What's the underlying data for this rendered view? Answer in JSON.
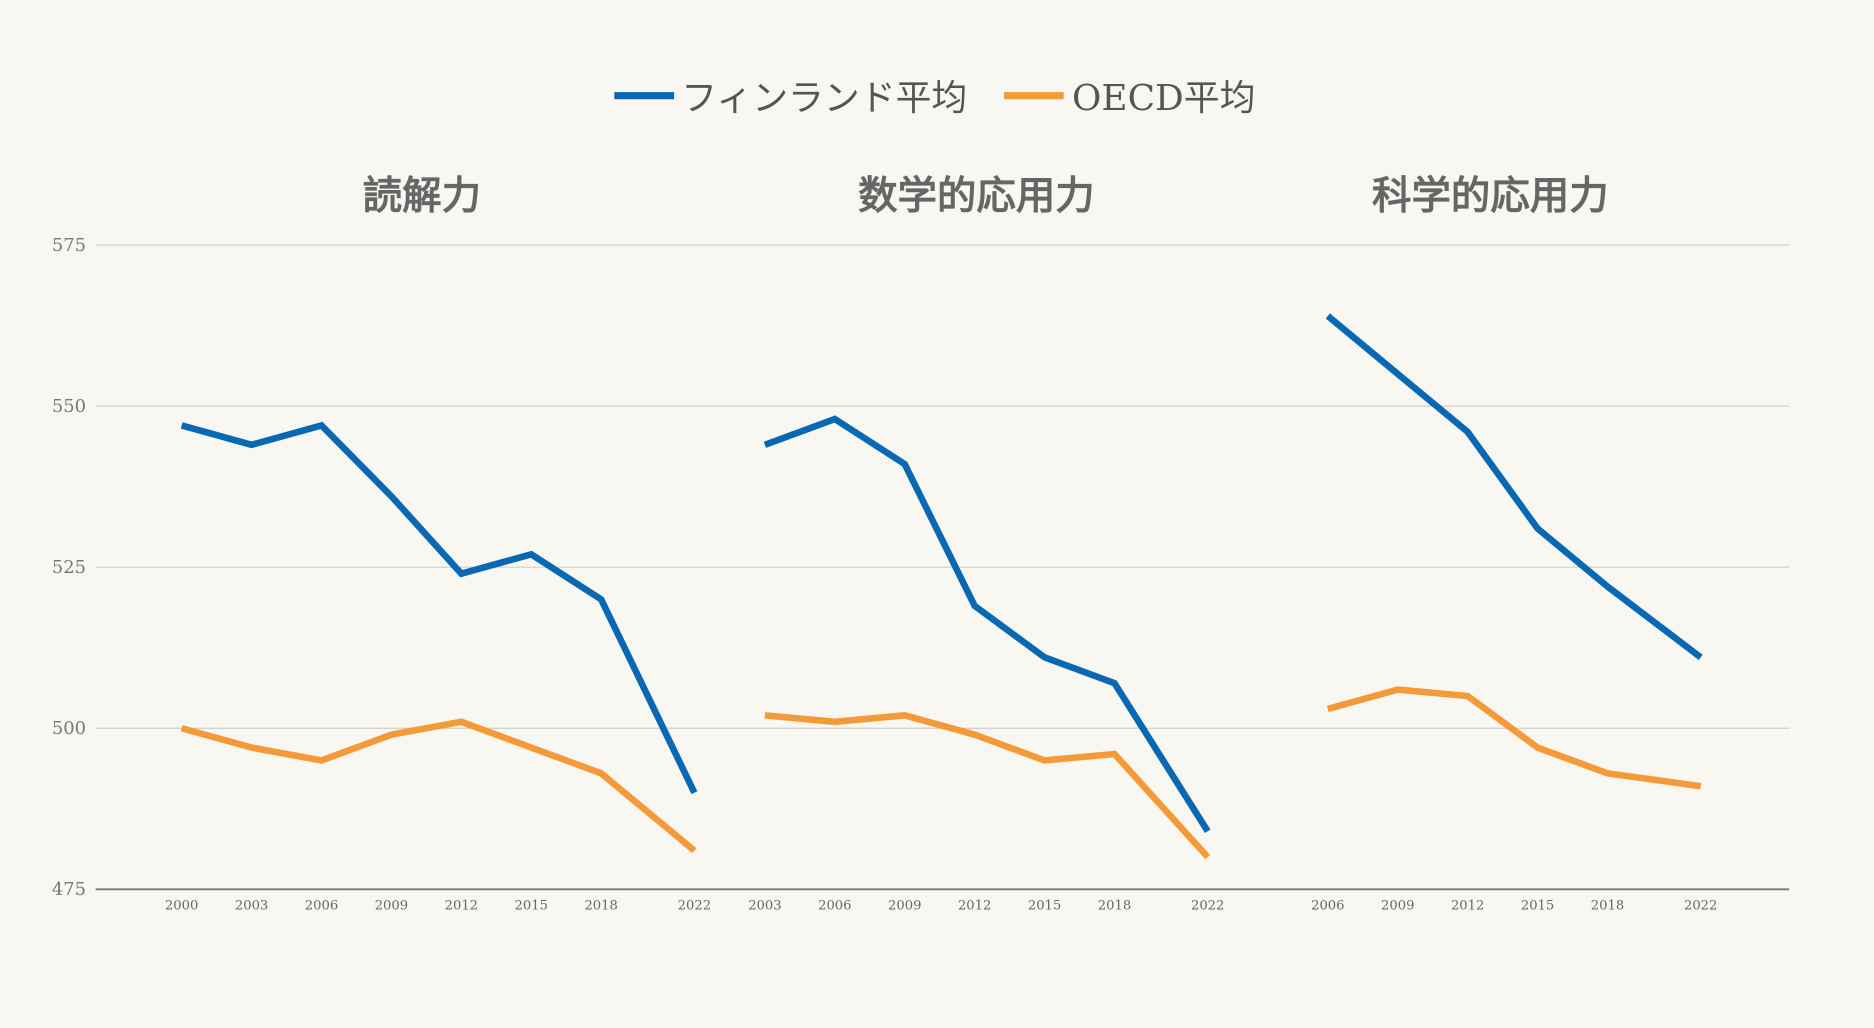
{
  "chart_data": {
    "type": "line",
    "legend": {
      "placement": "top-center",
      "entries": [
        "フィンランド平均",
        "OECD平均"
      ]
    },
    "series_colors": {
      "フィンランド平均": "#0868b4",
      "OECD平均": "#f59a38"
    },
    "ylim": [
      475,
      575
    ],
    "yticks": [
      575,
      550,
      525,
      500,
      475
    ],
    "grid": true,
    "panels": [
      {
        "title": "読解力",
        "x": [
          2000,
          2003,
          2006,
          2009,
          2012,
          2015,
          2018,
          2022
        ],
        "series": [
          {
            "name": "フィンランド平均",
            "values": [
              547,
              544,
              547,
              536,
              524,
              527,
              520,
              490
            ]
          },
          {
            "name": "OECD平均",
            "values": [
              500,
              497,
              495,
              499,
              501,
              497,
              493,
              481
            ]
          }
        ]
      },
      {
        "title": "数学的応用力",
        "x": [
          2003,
          2006,
          2009,
          2012,
          2015,
          2018,
          2022
        ],
        "series": [
          {
            "name": "フィンランド平均",
            "values": [
              544,
              548,
              541,
              519,
              511,
              507,
              484
            ]
          },
          {
            "name": "OECD平均",
            "values": [
              502,
              501,
              502,
              499,
              495,
              496,
              480
            ]
          }
        ]
      },
      {
        "title": "科学的応用力",
        "x": [
          2006,
          2009,
          2012,
          2015,
          2018,
          2022
        ],
        "series": [
          {
            "name": "フィンランド平均",
            "values": [
              564,
              555,
              546,
              531,
              522,
              511
            ]
          },
          {
            "name": "OECD平均",
            "values": [
              503,
              506,
              505,
              497,
              493,
              491
            ]
          }
        ]
      }
    ]
  }
}
